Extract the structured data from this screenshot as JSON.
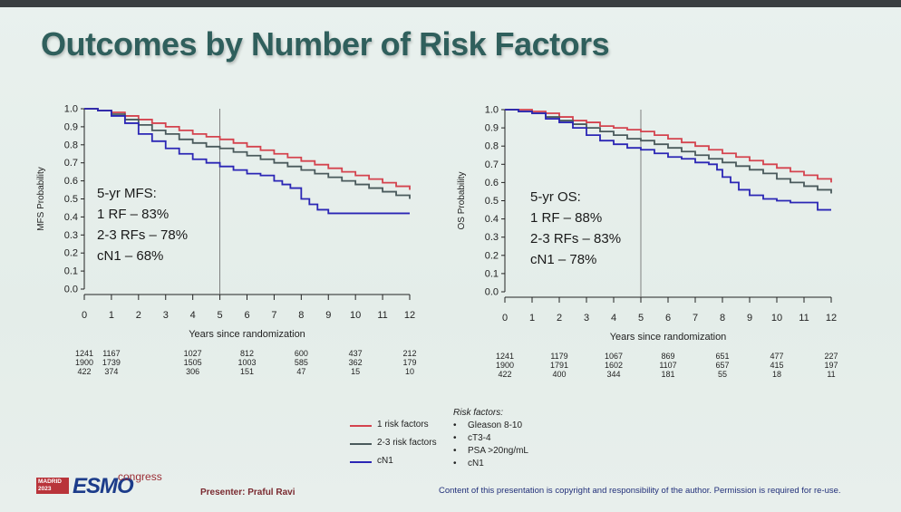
{
  "title": "Outcomes by Number of Risk Factors",
  "colors": {
    "rf1": "#d4434e",
    "rf23": "#4a5a5c",
    "cn1": "#2b26b5"
  },
  "chart_data": [
    {
      "type": "line",
      "ylabel": "MFS Probability",
      "xlabel": "Years since randomization",
      "xlim": [
        0,
        12
      ],
      "ylim": [
        0,
        1
      ],
      "xticks": [
        "0",
        "1",
        "2",
        "3",
        "4",
        "5",
        "6",
        "7",
        "8",
        "9",
        "10",
        "11",
        "12"
      ],
      "yticks": [
        "0.0",
        "0.1",
        "0.2",
        "0.3",
        "0.4",
        "0.5",
        "0.6",
        "0.7",
        "0.8",
        "0.9",
        "1.0"
      ],
      "vline_x": 5,
      "annotation": [
        "5-yr MFS:",
        "1 RF – 83%",
        "2-3 RFs – 78%",
        "cN1 – 68%"
      ],
      "series": [
        {
          "name": "1 risk factors",
          "color": "#d4434e",
          "x": [
            0,
            0.5,
            1,
            1.5,
            2,
            2.5,
            3,
            3.5,
            4,
            4.5,
            5,
            5.5,
            6,
            6.5,
            7,
            7.5,
            8,
            8.5,
            9,
            9.5,
            10,
            10.5,
            11,
            11.5,
            12
          ],
          "y": [
            1.0,
            0.99,
            0.98,
            0.96,
            0.94,
            0.92,
            0.9,
            0.88,
            0.86,
            0.845,
            0.83,
            0.81,
            0.79,
            0.77,
            0.75,
            0.73,
            0.71,
            0.69,
            0.67,
            0.65,
            0.63,
            0.61,
            0.59,
            0.57,
            0.55
          ]
        },
        {
          "name": "2-3 risk factors",
          "color": "#4a5a5c",
          "x": [
            0,
            0.5,
            1,
            1.5,
            2,
            2.5,
            3,
            3.5,
            4,
            4.5,
            5,
            5.5,
            6,
            6.5,
            7,
            7.5,
            8,
            8.5,
            9,
            9.5,
            10,
            10.5,
            11,
            11.5,
            12
          ],
          "y": [
            1.0,
            0.99,
            0.97,
            0.94,
            0.91,
            0.88,
            0.86,
            0.83,
            0.81,
            0.79,
            0.78,
            0.76,
            0.74,
            0.72,
            0.7,
            0.68,
            0.66,
            0.64,
            0.62,
            0.6,
            0.58,
            0.56,
            0.54,
            0.52,
            0.5
          ]
        },
        {
          "name": "cN1",
          "color": "#2b26b5",
          "x": [
            0,
            0.5,
            1,
            1.5,
            2,
            2.5,
            3,
            3.5,
            4,
            4.5,
            5,
            5.5,
            6,
            6.5,
            7,
            7.3,
            7.6,
            8,
            8.3,
            8.6,
            9,
            9.5,
            10,
            10.5,
            11,
            11.5,
            12
          ],
          "y": [
            1.0,
            0.99,
            0.96,
            0.92,
            0.86,
            0.82,
            0.78,
            0.75,
            0.72,
            0.7,
            0.68,
            0.66,
            0.64,
            0.63,
            0.6,
            0.58,
            0.56,
            0.5,
            0.47,
            0.44,
            0.42,
            0.42,
            0.42,
            0.42,
            0.42,
            0.42,
            0.42
          ]
        }
      ],
      "at_risk": [
        {
          "x": 0,
          "values": [
            "1241",
            "1900",
            "422"
          ]
        },
        {
          "x": 1,
          "values": [
            "1167",
            "1739",
            "374"
          ]
        },
        {
          "x": 4,
          "values": [
            "1027",
            "1505",
            "306"
          ]
        },
        {
          "x": 6,
          "values": [
            "812",
            "1003",
            "151"
          ]
        },
        {
          "x": 8,
          "values": [
            "600",
            "585",
            "47"
          ]
        },
        {
          "x": 10,
          "values": [
            "437",
            "362",
            "15"
          ]
        },
        {
          "x": 12,
          "values": [
            "212",
            "179",
            "10"
          ]
        }
      ]
    },
    {
      "type": "line",
      "ylabel": "OS Probability",
      "xlabel": "Years since randomization",
      "xlim": [
        0,
        12
      ],
      "ylim": [
        0,
        1
      ],
      "xticks": [
        "0",
        "1",
        "2",
        "3",
        "4",
        "5",
        "6",
        "7",
        "8",
        "9",
        "10",
        "11",
        "12"
      ],
      "yticks": [
        "0.0",
        "0.1",
        "0.2",
        "0.3",
        "0.4",
        "0.5",
        "0.6",
        "0.7",
        "0.8",
        "0.9",
        "1.0"
      ],
      "vline_x": 5,
      "annotation": [
        "5-yr OS:",
        "1 RF – 88%",
        "2-3 RFs – 83%",
        "cN1 – 78%"
      ],
      "series": [
        {
          "name": "1 risk factors",
          "color": "#d4434e",
          "x": [
            0,
            0.5,
            1,
            1.5,
            2,
            2.5,
            3,
            3.5,
            4,
            4.5,
            5,
            5.5,
            6,
            6.5,
            7,
            7.5,
            8,
            8.5,
            9,
            9.5,
            10,
            10.5,
            11,
            11.5,
            12
          ],
          "y": [
            1.0,
            1.0,
            0.99,
            0.98,
            0.96,
            0.94,
            0.93,
            0.91,
            0.9,
            0.89,
            0.88,
            0.86,
            0.84,
            0.82,
            0.8,
            0.78,
            0.76,
            0.74,
            0.72,
            0.7,
            0.68,
            0.66,
            0.64,
            0.62,
            0.6
          ]
        },
        {
          "name": "2-3 risk factors",
          "color": "#4a5a5c",
          "x": [
            0,
            0.5,
            1,
            1.5,
            2,
            2.5,
            3,
            3.5,
            4,
            4.5,
            5,
            5.5,
            6,
            6.5,
            7,
            7.5,
            8,
            8.5,
            9,
            9.5,
            10,
            10.5,
            11,
            11.5,
            12
          ],
          "y": [
            1.0,
            0.99,
            0.98,
            0.96,
            0.94,
            0.92,
            0.9,
            0.88,
            0.86,
            0.84,
            0.83,
            0.81,
            0.79,
            0.77,
            0.75,
            0.73,
            0.71,
            0.69,
            0.67,
            0.65,
            0.62,
            0.6,
            0.58,
            0.56,
            0.54
          ]
        },
        {
          "name": "cN1",
          "color": "#2b26b5",
          "x": [
            0,
            0.5,
            1,
            1.5,
            2,
            2.5,
            3,
            3.5,
            4,
            4.5,
            5,
            5.5,
            6,
            6.5,
            7,
            7.5,
            7.8,
            8,
            8.3,
            8.6,
            9,
            9.5,
            10,
            10.5,
            11,
            11.5,
            12
          ],
          "y": [
            1.0,
            0.99,
            0.98,
            0.95,
            0.93,
            0.9,
            0.86,
            0.83,
            0.81,
            0.79,
            0.78,
            0.76,
            0.74,
            0.73,
            0.71,
            0.7,
            0.67,
            0.63,
            0.6,
            0.56,
            0.53,
            0.51,
            0.5,
            0.49,
            0.49,
            0.45,
            0.45
          ]
        }
      ],
      "at_risk": [
        {
          "x": 0,
          "values": [
            "1241",
            "1900",
            "422"
          ]
        },
        {
          "x": 2,
          "values": [
            "1179",
            "1791",
            "400"
          ]
        },
        {
          "x": 4,
          "values": [
            "1067",
            "1602",
            "344"
          ]
        },
        {
          "x": 6,
          "values": [
            "869",
            "1107",
            "181"
          ]
        },
        {
          "x": 8,
          "values": [
            "651",
            "657",
            "55"
          ]
        },
        {
          "x": 10,
          "values": [
            "477",
            "415",
            "18"
          ]
        },
        {
          "x": 12,
          "values": [
            "227",
            "197",
            "11"
          ]
        }
      ]
    }
  ],
  "legend": [
    {
      "label": "1 risk factors",
      "color": "#d4434e"
    },
    {
      "label": "2-3 risk factors",
      "color": "#4a5a5c"
    },
    {
      "label": "cN1",
      "color": "#2b26b5"
    }
  ],
  "risk_factors": {
    "title": "Risk factors:",
    "items": [
      "Gleason 8-10",
      "cT3-4",
      "PSA >20ng/mL",
      "cN1"
    ]
  },
  "footer": {
    "logo_badge": "MADRID 2023",
    "logo_text": "ESMO",
    "logo_sub": "congress",
    "presenter": "Presenter: Praful Ravi",
    "copyright": "Content of this presentation is copyright and responsibility of the author. Permission is required for re-use."
  }
}
